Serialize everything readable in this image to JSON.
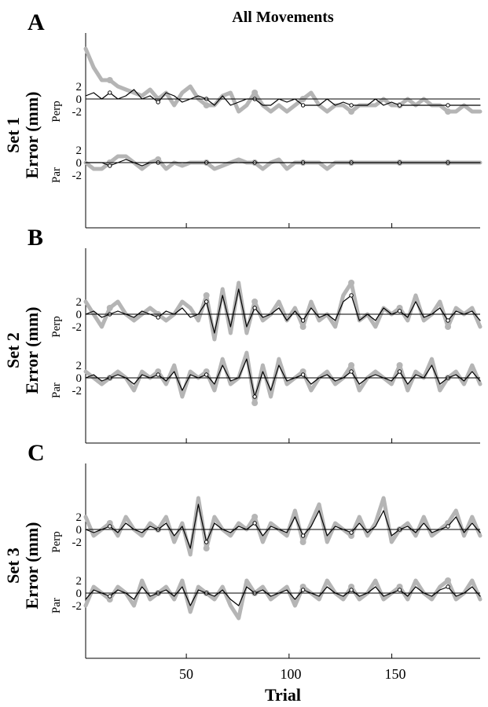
{
  "figure": {
    "title": "All Movements",
    "xlabel": "Trial",
    "y_unit_label": "Error (mm)",
    "x_ticks": [
      "50",
      "100",
      "150"
    ]
  },
  "chart_data": [
    {
      "type": "line",
      "panel": "A",
      "title": "Set 1",
      "ylabel": "Error (mm)",
      "xlabel": "Trial",
      "xlim": [
        1,
        193
      ],
      "x_ticks": [
        50,
        100,
        150
      ],
      "y_ticks": [
        "2",
        "0",
        "-2"
      ],
      "components": [
        "Perp",
        "Par"
      ],
      "grid": false,
      "series": [
        {
          "component": "Perp",
          "style": "thick-gray",
          "values": [
            8,
            5,
            3,
            3,
            2,
            1.5,
            1,
            0.5,
            1.5,
            0,
            1,
            -1,
            1,
            2,
            0,
            -1,
            -1,
            0.5,
            1,
            -2,
            -1,
            1,
            -1,
            -2,
            -1,
            -2,
            -1,
            0,
            1,
            -1,
            -2,
            -1,
            -1,
            -2,
            -1,
            -1,
            -1,
            0,
            -1,
            -1,
            0,
            -1,
            0,
            -1,
            -1,
            -2,
            -2,
            -1,
            -2,
            -2
          ]
        },
        {
          "component": "Perp",
          "style": "thin-black",
          "values": [
            0.5,
            1,
            0,
            1,
            0,
            0.5,
            1.5,
            0,
            0.5,
            -0.5,
            1,
            0.5,
            -0.5,
            0,
            0.5,
            0,
            -1,
            0.5,
            -1,
            -0.5,
            0,
            0,
            -1,
            -1,
            0,
            -0.5,
            0,
            -1,
            -1,
            -1,
            0,
            -1,
            -0.5,
            -1,
            -1,
            -1,
            0,
            -1,
            -0.5,
            -1,
            -1,
            -1,
            -1,
            -1,
            -1,
            -1,
            -1,
            -1,
            -1,
            -1
          ]
        },
        {
          "component": "Par",
          "style": "thick-gray",
          "values": [
            0,
            -1,
            -1,
            0,
            1,
            1,
            0,
            -1,
            0,
            0.5,
            -1,
            0,
            -0.5,
            0,
            0,
            0,
            -1,
            -0.5,
            0,
            0.5,
            0,
            0,
            -1,
            0,
            0.5,
            -1,
            0,
            0,
            0,
            0,
            -1,
            0,
            0,
            0,
            0,
            0,
            0,
            0,
            0,
            0,
            0,
            0,
            0,
            0,
            0,
            0,
            0,
            0,
            0,
            0
          ]
        },
        {
          "component": "Par",
          "style": "thin-black",
          "values": [
            0,
            0,
            0,
            -0.5,
            0,
            0.5,
            0,
            -0.5,
            0,
            0,
            0,
            0,
            0,
            0,
            0,
            0,
            0,
            0,
            0,
            0,
            0,
            0,
            0,
            0,
            0,
            0,
            0,
            0,
            0,
            0,
            0,
            0,
            0,
            0,
            0,
            0,
            0,
            0,
            0,
            0,
            0,
            0,
            0,
            0,
            0,
            0,
            0,
            0,
            0,
            0
          ]
        }
      ]
    },
    {
      "type": "line",
      "panel": "B",
      "title": "Set 2",
      "ylabel": "Error (mm)",
      "xlabel": "Trial",
      "xlim": [
        1,
        193
      ],
      "x_ticks": [
        50,
        100,
        150
      ],
      "y_ticks": [
        "2",
        "0",
        "-2"
      ],
      "components": [
        "Perp",
        "Par"
      ],
      "grid": false,
      "series": [
        {
          "component": "Perp",
          "style": "thick-gray",
          "values": [
            2,
            0,
            -2,
            1,
            2,
            0,
            -1,
            0,
            1,
            0,
            -1,
            0,
            2,
            1,
            -1,
            3,
            -4,
            4,
            -3,
            5,
            -3,
            2,
            -1,
            0,
            2,
            -1,
            1,
            -2,
            2,
            -1,
            0,
            -2,
            3,
            5,
            -1,
            0,
            -2,
            1,
            0,
            1,
            -1,
            3,
            -1,
            0,
            2,
            -2,
            1,
            0,
            1,
            -2
          ]
        },
        {
          "component": "Perp",
          "style": "thin-black",
          "values": [
            0,
            0.5,
            -0.5,
            0,
            0.5,
            0,
            -0.5,
            0.5,
            0,
            -0.5,
            0.5,
            0,
            1,
            -0.5,
            0,
            2,
            -3,
            3,
            -2,
            4,
            -2,
            1,
            -0.5,
            0,
            1,
            -1,
            0.5,
            -1,
            1,
            -0.5,
            0,
            -1,
            2,
            3,
            -1,
            0,
            -1,
            1,
            0,
            0.5,
            -0.5,
            2,
            -0.5,
            0,
            1,
            -1,
            0.5,
            0,
            0.5,
            -1
          ]
        },
        {
          "component": "Par",
          "style": "thick-gray",
          "values": [
            1,
            0,
            -1,
            0,
            1,
            0,
            -2,
            1,
            0,
            1,
            -1,
            2,
            -3,
            1,
            0,
            1,
            -2,
            3,
            -1,
            0,
            4,
            -4,
            2,
            -3,
            3,
            -1,
            0,
            1,
            -2,
            0,
            1,
            -1,
            0,
            2,
            -2,
            0,
            1,
            0,
            -1,
            2,
            -2,
            1,
            0,
            3,
            -2,
            0,
            1,
            -1,
            2,
            -1
          ]
        },
        {
          "component": "Par",
          "style": "thin-black",
          "values": [
            0,
            0.5,
            -0.5,
            0,
            0.5,
            0,
            -1,
            0.5,
            0,
            0.5,
            -0.5,
            1,
            -2,
            0.5,
            0,
            0.5,
            -1,
            2,
            -0.5,
            0,
            3,
            -3,
            1,
            -2,
            2,
            -0.5,
            0,
            0.5,
            -1,
            0,
            0.5,
            -0.5,
            0,
            1,
            -1,
            0,
            0.5,
            0,
            -0.5,
            1,
            -1,
            0.5,
            0,
            2,
            -1,
            0,
            0.5,
            -0.5,
            1,
            -0.5
          ]
        }
      ]
    },
    {
      "type": "line",
      "panel": "C",
      "title": "Set 3",
      "ylabel": "Error (mm)",
      "xlabel": "Trial",
      "xlim": [
        1,
        193
      ],
      "x_ticks": [
        50,
        100,
        150
      ],
      "y_ticks": [
        "2",
        "0",
        "-2"
      ],
      "components": [
        "Perp",
        "Par"
      ],
      "grid": false,
      "series": [
        {
          "component": "Perp",
          "style": "thick-gray",
          "values": [
            2,
            -1,
            0,
            1,
            -1,
            2,
            0,
            -1,
            1,
            0,
            2,
            -2,
            1,
            -4,
            5,
            -3,
            2,
            0,
            -1,
            1,
            0,
            2,
            -2,
            1,
            0,
            -1,
            3,
            -2,
            1,
            4,
            -2,
            1,
            0,
            -1,
            2,
            -1,
            1,
            5,
            -2,
            0,
            1,
            -1,
            2,
            -1,
            0,
            1,
            3,
            -1,
            2,
            -1
          ]
        },
        {
          "component": "Perp",
          "style": "thin-black",
          "values": [
            0,
            -0.5,
            0,
            0.5,
            -0.5,
            1,
            0,
            -0.5,
            0.5,
            0,
            1,
            -1,
            0.5,
            -3,
            4,
            -2,
            1,
            0,
            -0.5,
            0.5,
            0,
            1,
            -1,
            0.5,
            0,
            -0.5,
            2,
            -1,
            0.5,
            3,
            -1,
            0.5,
            0,
            -0.5,
            1,
            -0.5,
            0.5,
            3,
            -1,
            0,
            0.5,
            -0.5,
            1,
            -0.5,
            0,
            0.5,
            2,
            -0.5,
            1,
            -0.5
          ]
        },
        {
          "component": "Par",
          "style": "thick-gray",
          "values": [
            -2,
            1,
            0,
            -1,
            1,
            0,
            -2,
            2,
            -1,
            0,
            1,
            -1,
            2,
            -3,
            1,
            0,
            -1,
            1,
            -2,
            -4,
            2,
            0,
            1,
            -1,
            0,
            1,
            -2,
            1,
            0,
            -1,
            2,
            0,
            -1,
            1,
            -1,
            0,
            2,
            -1,
            0,
            1,
            -1,
            2,
            0,
            -1,
            1,
            2,
            -1,
            0,
            2,
            -1
          ]
        },
        {
          "component": "Par",
          "style": "thin-black",
          "values": [
            -1,
            0.5,
            0,
            -0.5,
            0.5,
            0,
            -1,
            1,
            -0.5,
            0,
            0.5,
            -0.5,
            1,
            -2,
            0.5,
            0,
            -0.5,
            0.5,
            -1,
            -2,
            1,
            0,
            0.5,
            -0.5,
            0,
            0.5,
            -1,
            0.5,
            0,
            -0.5,
            1,
            0,
            -0.5,
            0.5,
            -0.5,
            0,
            1,
            -0.5,
            0,
            0.5,
            -0.5,
            1,
            0,
            -0.5,
            0.5,
            1,
            -0.5,
            0,
            1,
            -0.5
          ]
        }
      ]
    }
  ],
  "colors": {
    "thick_series": "#b5b5b5",
    "thin_series": "#000000",
    "zero_line": "#000000",
    "axes": "#000000",
    "marker_fill": "#ffffff"
  }
}
